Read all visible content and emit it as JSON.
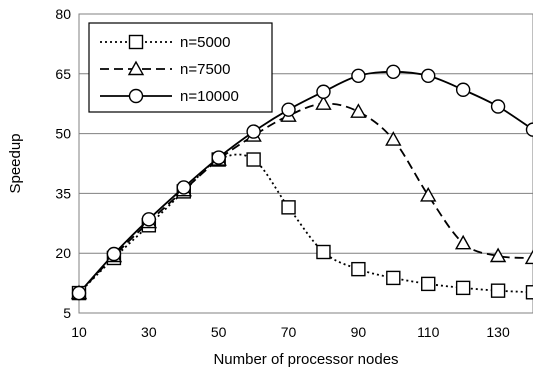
{
  "chart_data": {
    "type": "line",
    "title": "",
    "xlabel": "Number of processor nodes",
    "ylabel": "Speedup",
    "xlim": [
      10,
      140
    ],
    "ylim": [
      5,
      80
    ],
    "x_ticks": [
      10,
      30,
      50,
      70,
      90,
      110,
      130
    ],
    "y_ticks": [
      5,
      20,
      35,
      50,
      65,
      80
    ],
    "grid": "horizontal",
    "legend_position": "top-left",
    "x": [
      10,
      20,
      30,
      40,
      50,
      60,
      70,
      80,
      90,
      100,
      110,
      120,
      130,
      140
    ],
    "series": [
      {
        "name": "n=5000",
        "line_style": "dotted",
        "marker": "square",
        "values": [
          10,
          18.8,
          27,
          35.5,
          43.5,
          43.5,
          31.5,
          20.3,
          16,
          13.8,
          12.3,
          11.3,
          10.6,
          10.2
        ]
      },
      {
        "name": "n=7500",
        "line_style": "dashed",
        "marker": "triangle",
        "values": [
          10,
          19.3,
          27.8,
          35.8,
          43.5,
          49.5,
          54.5,
          57.5,
          55.5,
          48.5,
          34.5,
          22.5,
          19.3,
          18.8
        ]
      },
      {
        "name": "n=10000",
        "line_style": "solid",
        "marker": "circle",
        "values": [
          10,
          19.8,
          28.5,
          36.5,
          44,
          50.5,
          56,
          60.5,
          64.5,
          65.5,
          64.5,
          61,
          56.8,
          51
        ]
      }
    ],
    "colors": {
      "line": "#000000",
      "grid": "#808080",
      "marker_fill": "#ffffff"
    }
  }
}
